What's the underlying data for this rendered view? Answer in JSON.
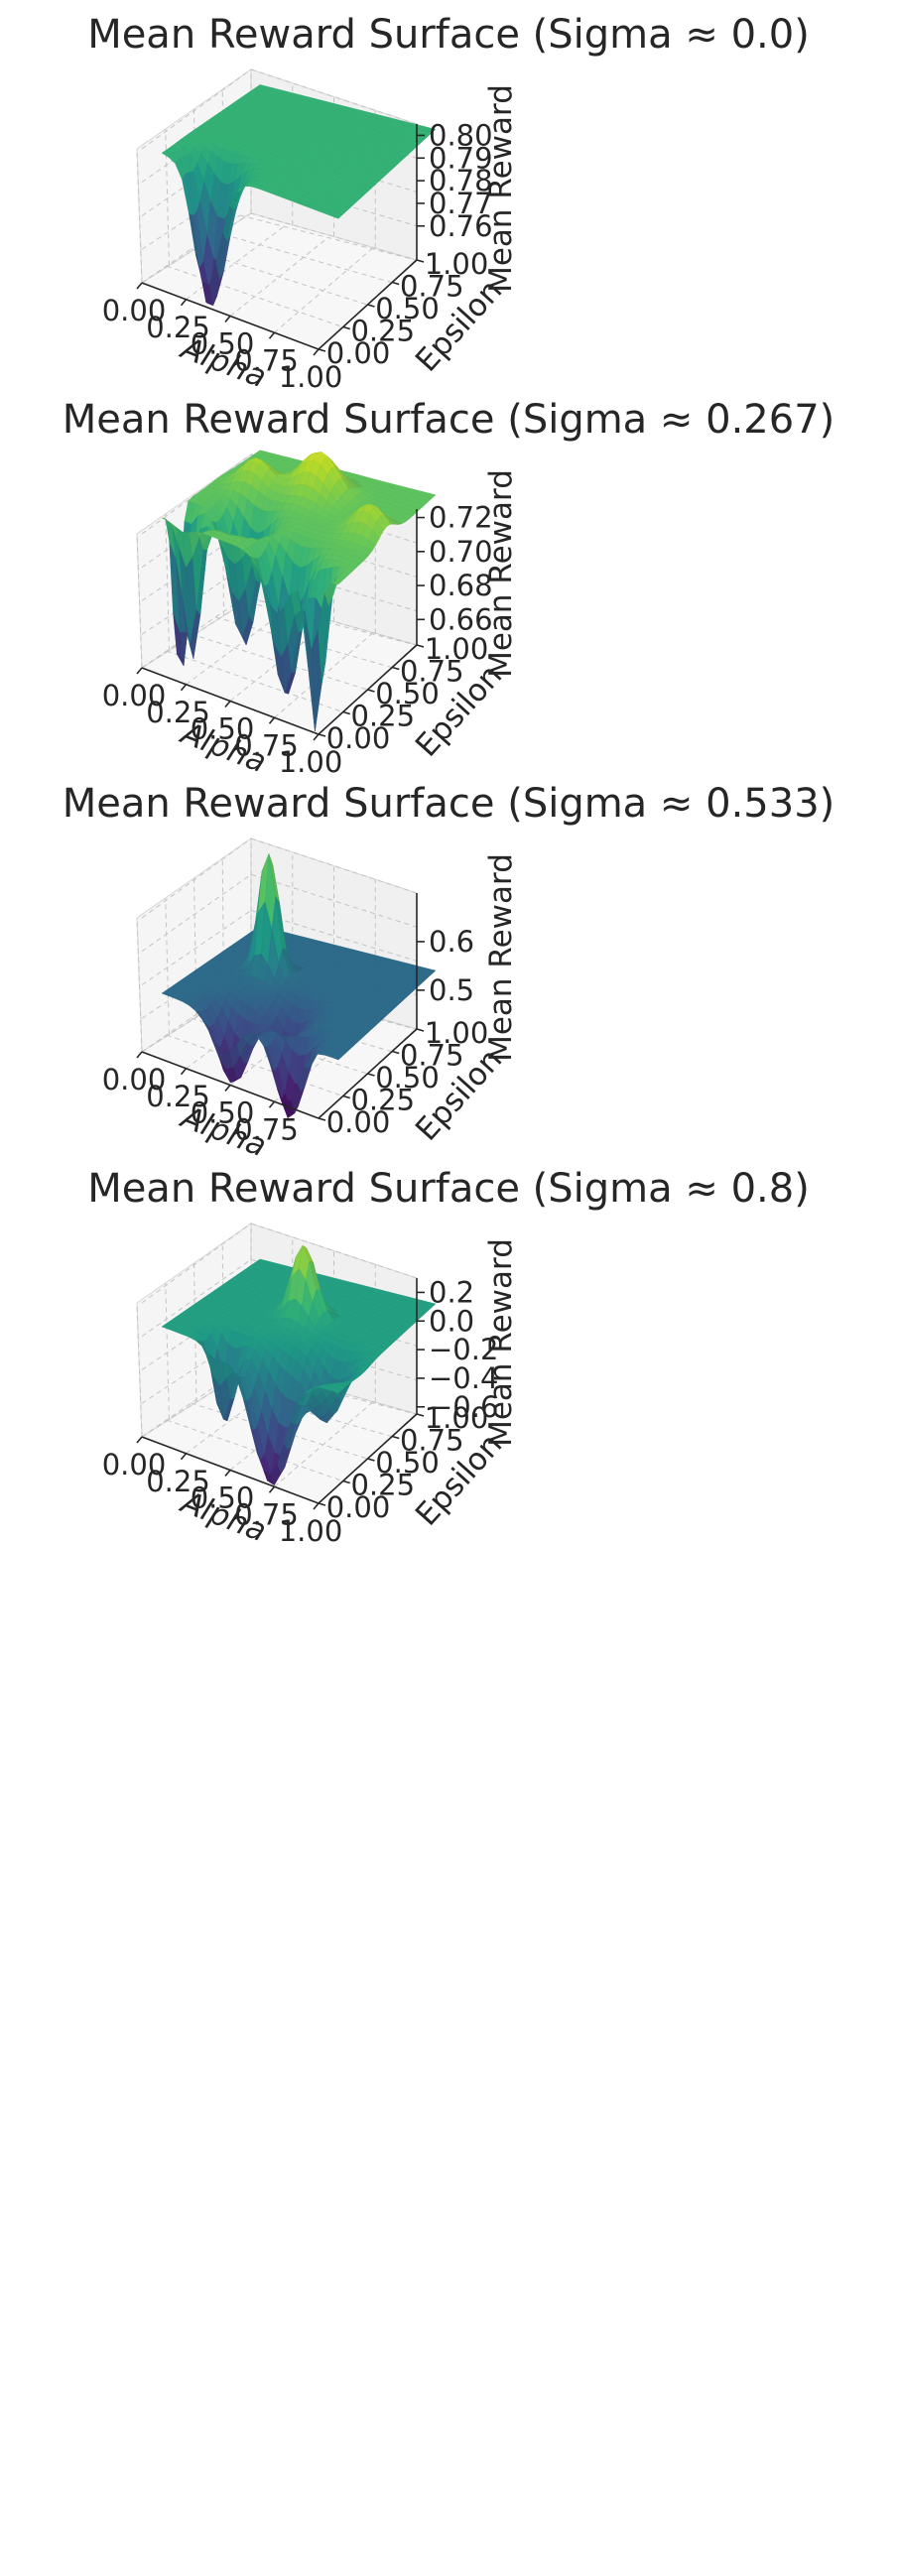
{
  "chart_data": [
    {
      "type": "surface",
      "title": "Mean Reward Surface (Sigma ≈ 0.0)",
      "xlabel": "Alpha",
      "ylabel": "Epsilon",
      "zlabel": "Mean Reward",
      "x_ticks": [
        "0.00",
        "0.25",
        "0.50",
        "0.75",
        "1.00"
      ],
      "y_ticks": [
        "0.00",
        "0.25",
        "0.50",
        "0.75",
        "1.00"
      ],
      "z_ticks": [
        0.76,
        0.77,
        0.78,
        0.79,
        0.8
      ],
      "z_tick_labels": [
        "0.76",
        "0.77",
        "0.78",
        "0.79",
        "0.80"
      ],
      "zlim": [
        0.745,
        0.805
      ],
      "base": 0.785,
      "features": [
        {
          "alpha": 0.12,
          "epsilon": 0.05,
          "z": 0.79,
          "width": 0.04
        },
        {
          "alpha": 0.25,
          "epsilon": 0.05,
          "z": 0.748,
          "width": 0.08
        }
      ],
      "colormap": "viridis"
    },
    {
      "type": "surface",
      "title": "Mean Reward Surface (Sigma ≈ 0.267)",
      "xlabel": "Alpha",
      "ylabel": "Epsilon",
      "zlabel": "Mean Reward",
      "x_ticks": [
        "0.00",
        "0.25",
        "0.50",
        "0.75",
        "1.00"
      ],
      "y_ticks": [
        "0.00",
        "0.25",
        "0.50",
        "0.75",
        "1.00"
      ],
      "z_ticks": [
        0.66,
        0.68,
        0.7,
        0.72
      ],
      "z_tick_labels": [
        "0.66",
        "0.68",
        "0.70",
        "0.72"
      ],
      "zlim": [
        0.645,
        0.725
      ],
      "base": 0.705,
      "features": [
        {
          "alpha": 0.02,
          "epsilon": 0.15,
          "z": 0.648,
          "width": 0.04
        },
        {
          "alpha": 0.12,
          "epsilon": 0.1,
          "z": 0.655,
          "width": 0.04
        },
        {
          "alpha": 0.3,
          "epsilon": 0.3,
          "z": 0.66,
          "width": 0.07
        },
        {
          "alpha": 0.65,
          "epsilon": 0.1,
          "z": 0.655,
          "width": 0.07
        },
        {
          "alpha": 0.85,
          "epsilon": 0.05,
          "z": 0.648,
          "width": 0.04
        },
        {
          "alpha": 0.5,
          "epsilon": 0.7,
          "z": 0.72,
          "width": 0.1
        },
        {
          "alpha": 0.2,
          "epsilon": 0.6,
          "z": 0.715,
          "width": 0.08
        },
        {
          "alpha": 0.9,
          "epsilon": 0.5,
          "z": 0.715,
          "width": 0.08
        }
      ],
      "colormap": "viridis"
    },
    {
      "type": "surface",
      "title": "Mean Reward Surface (Sigma ≈ 0.533)",
      "xlabel": "Alpha",
      "ylabel": "Epsilon",
      "zlabel": "Mean Reward",
      "x_ticks": [
        "0.00",
        "0.25",
        "0.50",
        "0.75"
      ],
      "y_ticks": [
        "0.00",
        "0.25",
        "0.50",
        "0.75",
        "1.00"
      ],
      "z_ticks": [
        0.5,
        0.6
      ],
      "z_tick_labels": [
        "0.5",
        "0.6"
      ],
      "zlim": [
        0.42,
        0.7
      ],
      "base": 0.52,
      "features": [
        {
          "alpha": 0.3,
          "epsilon": 0.55,
          "z": 0.67,
          "width": 0.05
        },
        {
          "alpha": 0.35,
          "epsilon": 0.1,
          "z": 0.43,
          "width": 0.08
        },
        {
          "alpha": 0.7,
          "epsilon": 0.05,
          "z": 0.42,
          "width": 0.07
        },
        {
          "alpha": 0.55,
          "epsilon": 0.3,
          "z": 0.47,
          "width": 0.08
        }
      ],
      "colormap": "viridis"
    },
    {
      "type": "surface",
      "title": "Mean Reward Surface (Sigma ≈ 0.8)",
      "xlabel": "Alpha",
      "ylabel": "Epsilon",
      "zlabel": "Mean Reward",
      "x_ticks": [
        "0.00",
        "0.25",
        "0.50",
        "0.75",
        "1.00"
      ],
      "y_ticks": [
        "0.00",
        "0.25",
        "0.50",
        "0.75",
        "1.00"
      ],
      "z_ticks": [
        -0.6,
        -0.4,
        -0.2,
        0.0,
        0.2
      ],
      "z_tick_labels": [
        "−0.6",
        "−0.4",
        "−0.2",
        "0.0",
        "0.2"
      ],
      "zlim": [
        -0.65,
        0.3
      ],
      "base": -0.1,
      "features": [
        {
          "alpha": 0.5,
          "epsilon": 0.55,
          "z": 0.2,
          "width": 0.06
        },
        {
          "alpha": 0.6,
          "epsilon": 0.05,
          "z": -0.6,
          "width": 0.1
        },
        {
          "alpha": 0.3,
          "epsilon": 0.1,
          "z": -0.45,
          "width": 0.05
        },
        {
          "alpha": 0.8,
          "epsilon": 0.25,
          "z": -0.35,
          "width": 0.08
        }
      ],
      "colormap": "viridis"
    }
  ]
}
